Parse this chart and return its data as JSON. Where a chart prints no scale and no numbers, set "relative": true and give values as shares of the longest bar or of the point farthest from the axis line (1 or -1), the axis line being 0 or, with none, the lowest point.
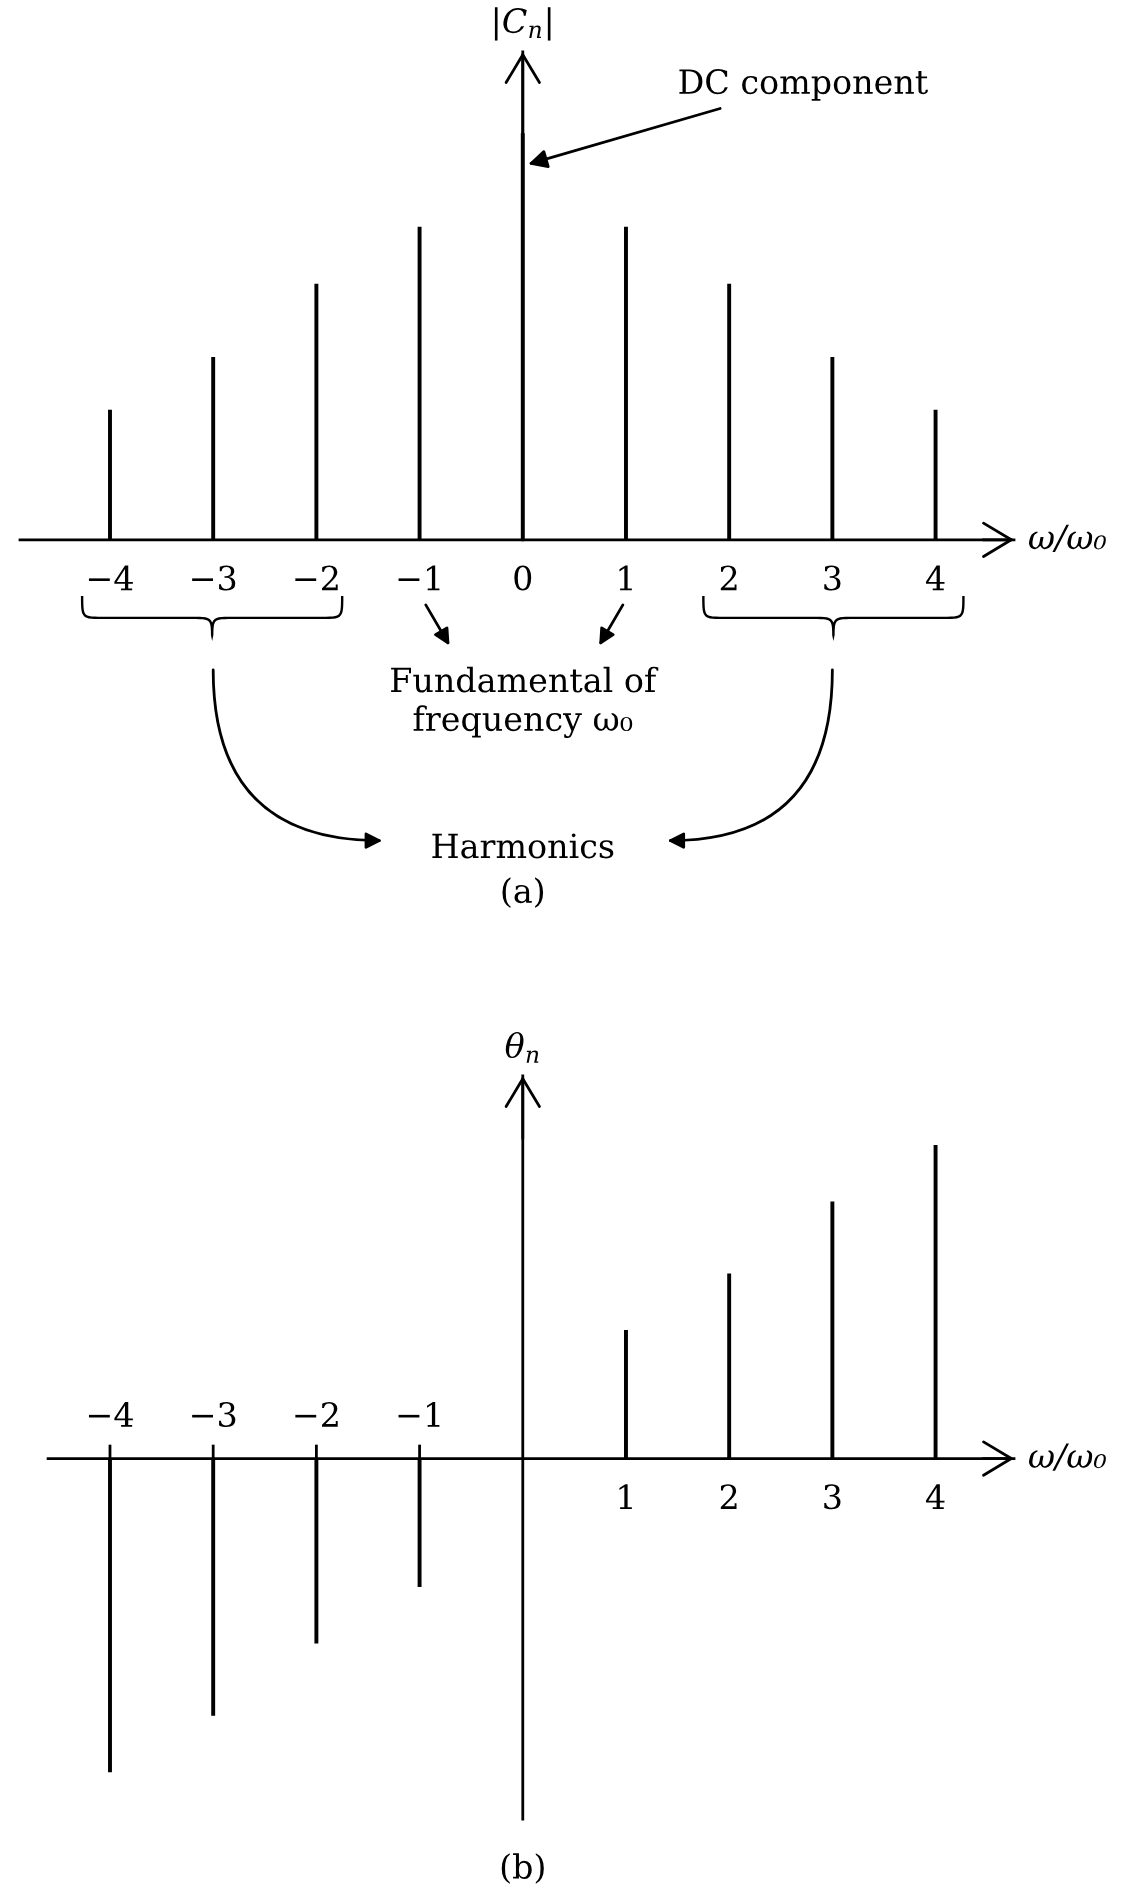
{
  "chart_data": [
    {
      "type": "bar",
      "relative": true,
      "categories": [
        "−4",
        "−3",
        "−2",
        "−1",
        "0",
        "1",
        "2",
        "3",
        "4"
      ],
      "values": [
        0.32,
        0.45,
        0.63,
        0.77,
        1,
        0.77,
        0.63,
        0.45,
        0.32
      ],
      "color": "#000000",
      "xlabel": "ω/ω₀",
      "ylabel": "|C$_{n}$|",
      "annotations": [
        {
          "text": "DC component",
          "x": "0",
          "y": 0.92
        },
        "Fundamental of\nfrequency ω₀",
        "Harmonics",
        "(a)"
      ]
    },
    {
      "type": "bar",
      "relative": true,
      "categories": [
        "−4",
        "−3",
        "−2",
        "−1",
        null,
        "1",
        "2",
        "3",
        "4"
      ],
      "values": [
        -1,
        -0.82,
        -0.59,
        -0.41,
        null,
        0.41,
        0.59,
        0.82,
        1
      ],
      "color": "#000000",
      "xlabel": "ω/ω₀",
      "ylabel": "θ$_{n}$",
      "annotations": [
        "(b)"
      ]
    }
  ]
}
